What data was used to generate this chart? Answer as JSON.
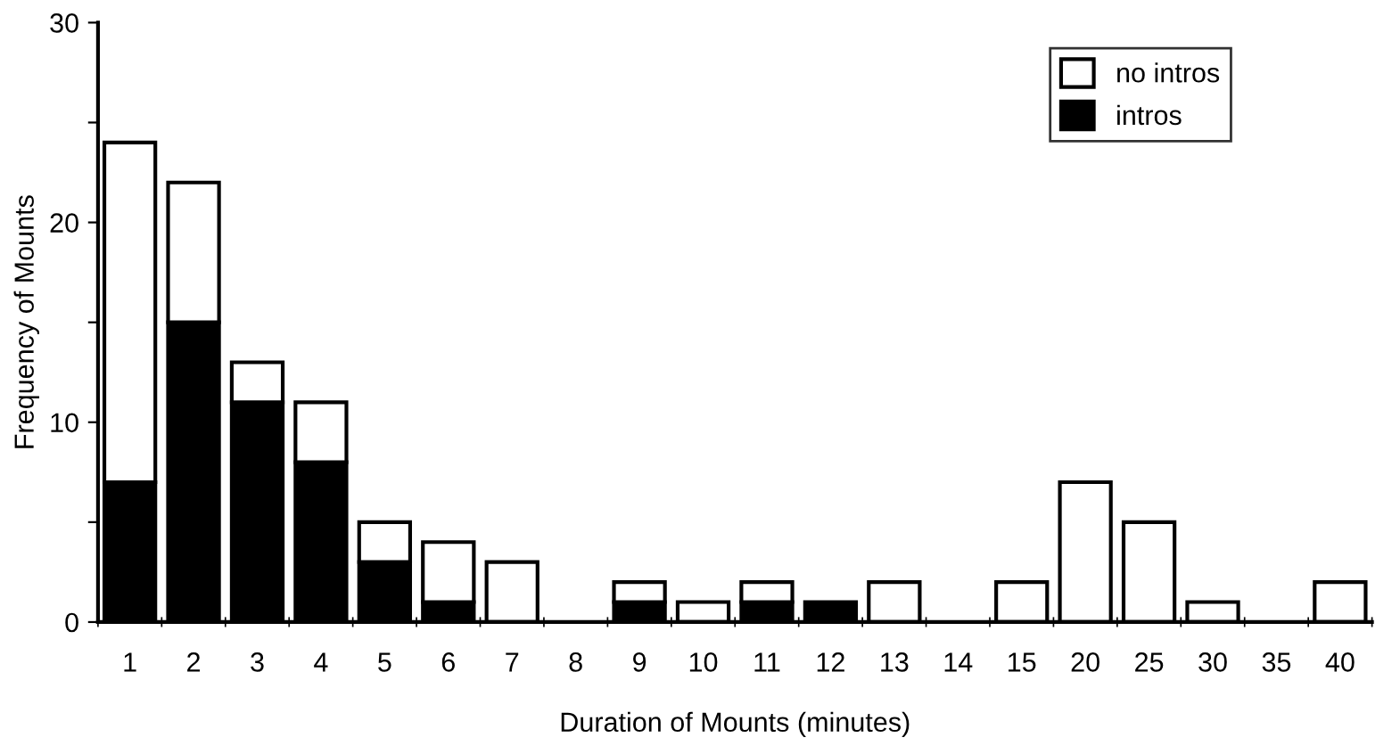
{
  "chart_data": {
    "type": "bar",
    "stacked": true,
    "xlabel": "Duration of Mounts (minutes)",
    "ylabel": "Frequency of Mounts",
    "categories": [
      "1",
      "2",
      "3",
      "4",
      "5",
      "6",
      "7",
      "8",
      "9",
      "10",
      "11",
      "12",
      "13",
      "14",
      "15",
      "20",
      "25",
      "30",
      "35",
      "40"
    ],
    "series": [
      {
        "name": "intros",
        "color": "#000000",
        "values": [
          7,
          15,
          11,
          8,
          3,
          1,
          0,
          0,
          1,
          0,
          1,
          1,
          0,
          0,
          0,
          0,
          0,
          0,
          0,
          0
        ]
      },
      {
        "name": "no intros",
        "color": "#ffffff",
        "values": [
          17,
          7,
          2,
          3,
          2,
          3,
          3,
          0,
          1,
          1,
          1,
          0,
          2,
          0,
          2,
          7,
          5,
          1,
          0,
          2
        ]
      }
    ],
    "ylim": [
      0,
      30
    ],
    "yticks": [
      0,
      {
        "value": 5,
        "label": null
      },
      10,
      {
        "value": 15,
        "label": null
      },
      20,
      {
        "value": 25,
        "label": null
      },
      30
    ],
    "grid": false,
    "legend": "top right"
  }
}
